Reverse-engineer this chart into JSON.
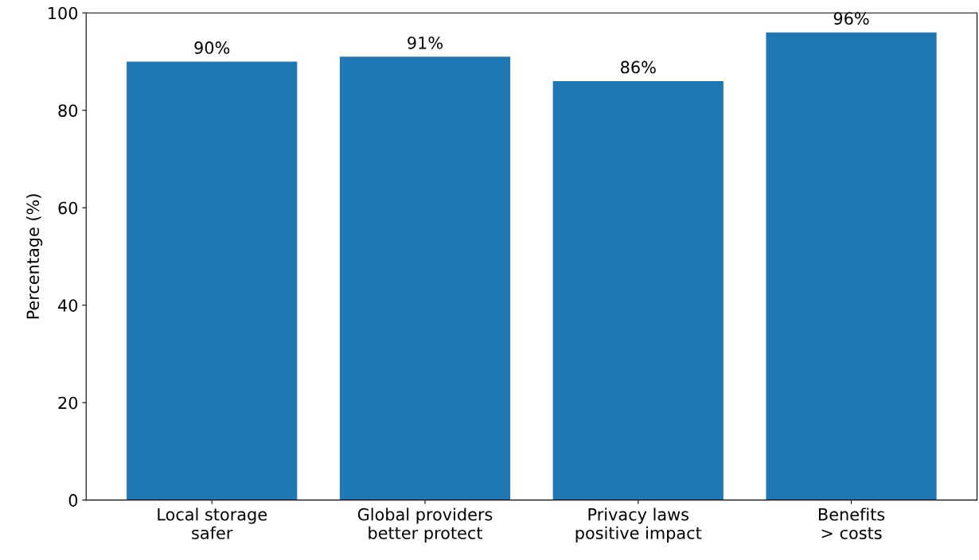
{
  "chart_data": {
    "type": "bar",
    "ylabel": "Percentage (%)",
    "categories": [
      "Local storage\nsafer",
      "Global providers\nbetter protect",
      "Privacy laws\npositive impact",
      "Benefits\n> costs"
    ],
    "values": [
      90,
      91,
      86,
      96
    ],
    "value_labels": [
      "90%",
      "91%",
      "86%",
      "96%"
    ],
    "color": "#1f77b4",
    "ylim": [
      0,
      100
    ],
    "yticks": [
      0,
      20,
      40,
      60,
      80,
      100
    ],
    "grid": false,
    "legend": false
  }
}
